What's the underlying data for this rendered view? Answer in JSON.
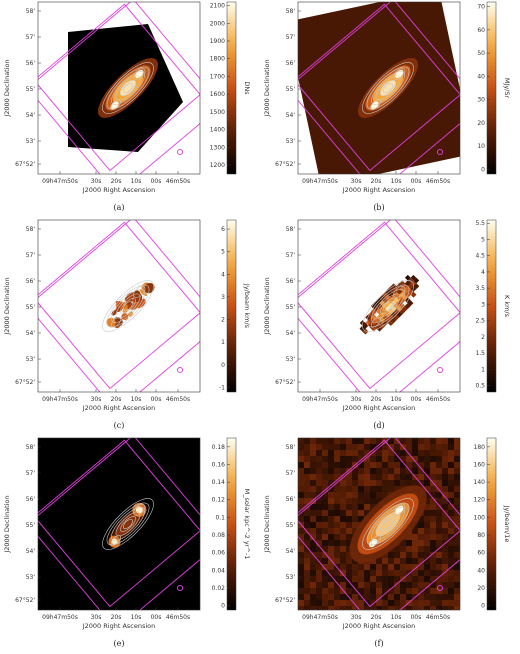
{
  "colors": {
    "footprint": "#e040e0",
    "contour": "#c8c8c8",
    "beam": "#e040e0",
    "axis": "#333333"
  },
  "chart_data": [
    {
      "type": "heatmap",
      "caption": "(a)",
      "xlabel": "J2000 Right Ascension",
      "ylabel": "J2000 Declination",
      "x_ticks": [
        "09h47m50s",
        "30s",
        "20s",
        "10s",
        "00s",
        "46m50s"
      ],
      "y_ticks": [
        "58'",
        "57'",
        "56'",
        "55'",
        "54'",
        "53'",
        "67°52'"
      ],
      "colorbar_label": "DNs",
      "colorbar_ticks": [
        "2100",
        "2000",
        "1900",
        "1800",
        "1700",
        "1600",
        "1500",
        "1400",
        "1300",
        "1200"
      ],
      "colorbar_range": [
        1150,
        2120
      ],
      "background": "black-masked"
    },
    {
      "type": "heatmap",
      "caption": "(b)",
      "xlabel": "J2000 Right Ascension",
      "ylabel": "J2000 Declination",
      "x_ticks": [
        "09h47m50s",
        "30s",
        "20s",
        "10s",
        "00s",
        "46m50s"
      ],
      "y_ticks": [
        "58'",
        "57'",
        "56'",
        "55'",
        "54'",
        "53'",
        "67°52'"
      ],
      "colorbar_label": "MJy/Sr",
      "colorbar_ticks": [
        "70",
        "60",
        "50",
        "40",
        "30",
        "20",
        "10",
        "0"
      ],
      "colorbar_range": [
        -2,
        72
      ],
      "background": "dark-brown"
    },
    {
      "type": "heatmap",
      "caption": "(c)",
      "xlabel": "J2000 Right Ascension",
      "ylabel": "J2000 Declination",
      "x_ticks": [
        "09h47m50s",
        "30s",
        "20s",
        "10s",
        "00s",
        "46m50s"
      ],
      "y_ticks": [
        "58'",
        "57'",
        "56'",
        "55'",
        "54'",
        "53'",
        "67°52'"
      ],
      "colorbar_label": "Jy/beam km/s",
      "colorbar_ticks": [
        "6",
        "5",
        "4",
        "3",
        "2",
        "1",
        "0",
        "-1"
      ],
      "colorbar_range": [
        -1.2,
        6.4
      ],
      "background": "white"
    },
    {
      "type": "heatmap",
      "caption": "(d)",
      "xlabel": "J2000 Right Ascension",
      "ylabel": "J2000 Declination",
      "x_ticks": [
        "09h47m50s",
        "30s",
        "20s",
        "10s",
        "00s",
        "46m50s"
      ],
      "y_ticks": [
        "58'",
        "57'",
        "56'",
        "55'",
        "54'",
        "53'",
        "67°52'"
      ],
      "colorbar_label": "K km/s",
      "colorbar_ticks": [
        "5.5",
        "5",
        "4.5",
        "4",
        "3.5",
        "3",
        "2.5",
        "2",
        "1.5",
        "1",
        "0.5"
      ],
      "colorbar_range": [
        0.3,
        5.6
      ],
      "background": "white"
    },
    {
      "type": "heatmap",
      "caption": "(e)",
      "xlabel": "J2000 Right Ascension",
      "ylabel": "J2000 Declination",
      "x_ticks": [
        "09h47m50s",
        "30s",
        "20s",
        "10s",
        "00s",
        "46m50s"
      ],
      "y_ticks": [
        "58'",
        "57'",
        "56'",
        "55'",
        "54'",
        "53'",
        "67°52'"
      ],
      "colorbar_label": "M_solar kpc^-2 yr^-1",
      "colorbar_ticks": [
        "0.18",
        "0.16",
        "0.14",
        "0.12",
        "0.1",
        "0.08",
        "0.06",
        "0.04",
        "0.02",
        "0"
      ],
      "colorbar_range": [
        -0.005,
        0.19
      ],
      "background": "black"
    },
    {
      "type": "heatmap",
      "caption": "(f)",
      "xlabel": "J2000 Right Ascension",
      "ylabel": "J2000 Declination",
      "x_ticks": [
        "09h47m50s",
        "30s",
        "20s",
        "10s",
        "00s",
        "46m50s"
      ],
      "y_ticks": [
        "58'",
        "57'",
        "56'",
        "55'",
        "54'",
        "53'",
        "67°52'"
      ],
      "colorbar_label": "Jy/beam/1e",
      "colorbar_ticks": [
        "180",
        "160",
        "140",
        "120",
        "100",
        "80",
        "60",
        "40",
        "20",
        "0"
      ],
      "colorbar_range": [
        -5,
        190
      ],
      "background": "noisy"
    }
  ]
}
